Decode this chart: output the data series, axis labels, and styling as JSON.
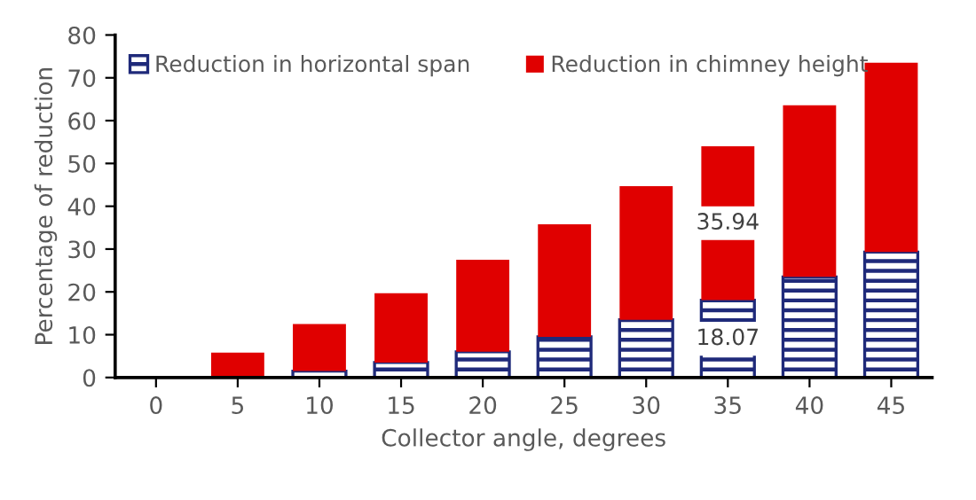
{
  "chart_data": {
    "type": "bar",
    "stacked": true,
    "xlabel": "Collector angle, degrees",
    "ylabel": "Percentage of reduction",
    "categories": [
      "0",
      "5",
      "10",
      "15",
      "20",
      "25",
      "30",
      "35",
      "40",
      "45"
    ],
    "series": [
      {
        "name": "Reduction in horizontal span",
        "color": "#1f2a7a",
        "values": [
          0,
          0,
          1.5,
          3.5,
          6,
          9.5,
          13.5,
          18.07,
          23.5,
          29.3
        ],
        "value_labels": [
          null,
          null,
          null,
          null,
          null,
          null,
          null,
          "18.07",
          null,
          null
        ]
      },
      {
        "name": "Reduction in chimney height",
        "color": "#e00000",
        "values": [
          0,
          5.8,
          11,
          16.2,
          21.5,
          26.3,
          31.2,
          35.94,
          40.1,
          44.2
        ],
        "value_labels": [
          null,
          null,
          null,
          null,
          null,
          null,
          null,
          "35.94",
          null,
          null
        ]
      }
    ],
    "ylim": [
      0,
      80
    ],
    "yticks": [
      0,
      10,
      20,
      30,
      40,
      50,
      60,
      70,
      80
    ],
    "grid": false,
    "legend": "top"
  }
}
